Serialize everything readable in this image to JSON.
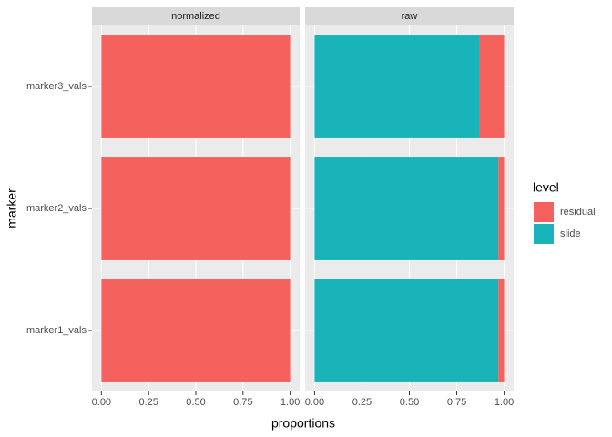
{
  "chart_data": [
    {
      "type": "bar",
      "orientation": "horizontal",
      "stacked": true,
      "facet": "normalized",
      "categories": [
        "marker1_vals",
        "marker2_vals",
        "marker3_vals"
      ],
      "series": [
        {
          "name": "residual",
          "color": "#f5615c",
          "values": [
            1,
            1,
            1
          ]
        },
        {
          "name": "slide",
          "color": "#19b4b9",
          "values": [
            0,
            0,
            0
          ]
        }
      ],
      "xlim": [
        -0.05,
        1.05
      ],
      "xticks": [
        {
          "value": 0,
          "label": "0.00"
        },
        {
          "value": 0.25,
          "label": "0.25"
        },
        {
          "value": 0.5,
          "label": "0.50"
        },
        {
          "value": 0.75,
          "label": "0.75"
        },
        {
          "value": 1,
          "label": "1.00"
        }
      ],
      "grid": true
    },
    {
      "type": "bar",
      "orientation": "horizontal",
      "stacked": true,
      "facet": "raw",
      "categories": [
        "marker1_vals",
        "marker2_vals",
        "marker3_vals"
      ],
      "series": [
        {
          "name": "residual",
          "color": "#f5615c",
          "values": [
            0.03,
            0.03,
            0.13
          ]
        },
        {
          "name": "slide",
          "color": "#19b4b9",
          "values": [
            0.97,
            0.97,
            0.87
          ]
        }
      ],
      "xlim": [
        -0.05,
        1.05
      ],
      "xticks": [
        {
          "value": 0,
          "label": "0.00"
        },
        {
          "value": 0.25,
          "label": "0.25"
        },
        {
          "value": 0.5,
          "label": "0.50"
        },
        {
          "value": 0.75,
          "label": "0.75"
        },
        {
          "value": 1,
          "label": "1.00"
        }
      ],
      "grid": true
    }
  ],
  "x_label": "proportions",
  "y_label": "marker",
  "legend_title": "level"
}
